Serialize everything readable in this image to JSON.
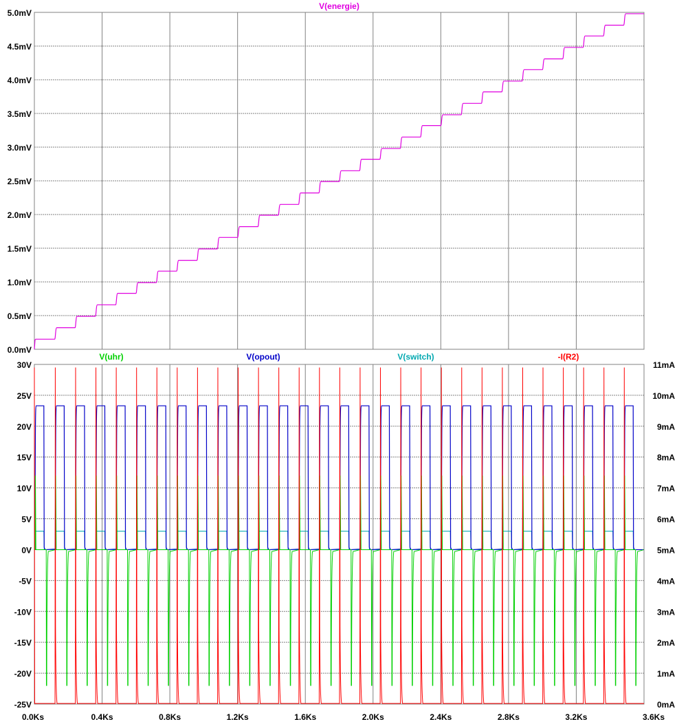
{
  "chart_data": [
    {
      "type": "line",
      "title": "",
      "x_unit": "Ks",
      "xlim": [
        0.0,
        3.6
      ],
      "x_ticks": [
        "0.0Ks",
        "0.4Ks",
        "0.8Ks",
        "1.2Ks",
        "1.6Ks",
        "2.0Ks",
        "2.4Ks",
        "2.8Ks",
        "3.2Ks",
        "3.6Ks"
      ],
      "ylim": [
        0.0,
        5.0
      ],
      "y_ticks": [
        "0.0mV",
        "0.5mV",
        "1.0mV",
        "1.5mV",
        "2.0mV",
        "2.5mV",
        "3.0mV",
        "3.5mV",
        "4.0mV",
        "4.5mV",
        "5.0mV"
      ],
      "grid": true,
      "series": [
        {
          "name": "V(energie)",
          "color": "#e000e0",
          "description_of_shape": "staircase rising by about 0.166mV every 0.12Ks",
          "step_period_ks": 0.12,
          "steps": [
            0.15,
            0.32,
            0.49,
            0.66,
            0.83,
            0.99,
            1.16,
            1.32,
            1.49,
            1.66,
            1.82,
            1.99,
            2.15,
            2.32,
            2.49,
            2.65,
            2.82,
            2.98,
            3.15,
            3.32,
            3.48,
            3.65,
            3.82,
            3.98,
            4.15,
            4.31,
            4.48,
            4.65,
            4.81,
            4.98
          ]
        }
      ]
    },
    {
      "type": "line",
      "title": "",
      "x_unit": "Ks",
      "xlim": [
        0.0,
        3.6
      ],
      "x_ticks": [
        "0.0Ks",
        "0.4Ks",
        "0.8Ks",
        "1.2Ks",
        "1.6Ks",
        "2.0Ks",
        "2.4Ks",
        "2.8Ks",
        "3.2Ks",
        "3.6Ks"
      ],
      "ylim": [
        -25,
        30
      ],
      "y_ticks": [
        "30V",
        "25V",
        "20V",
        "15V",
        "10V",
        "5V",
        "0V",
        "-5V",
        "-10V",
        "-15V",
        "-20V",
        "-25V"
      ],
      "y2lim": [
        0,
        11
      ],
      "y2_ticks": [
        "11mA",
        "10mA",
        "9mA",
        "8mA",
        "7mA",
        "6mA",
        "5mA",
        "4mA",
        "3mA",
        "2mA",
        "1mA",
        "0mA"
      ],
      "grid": true,
      "pulse_period_ks": 0.12,
      "pulse_count": 30,
      "series": [
        {
          "name": "V(uhr)",
          "color": "#00d000",
          "axis": "left",
          "spike_high_v": 12,
          "spike_low_v": -22,
          "baseline_v": 0
        },
        {
          "name": "V(opout)",
          "color": "#0000c8",
          "axis": "left",
          "high_v": 23.3,
          "low_v": 0,
          "high_duration_ks": 0.05
        },
        {
          "name": "V(switch)",
          "color": "#00a8b0",
          "axis": "left",
          "high_v": 3,
          "low_v": 0
        },
        {
          "name": "-I(R2)",
          "color": "#ff0000",
          "axis": "right",
          "spike_ma": 10.9,
          "baseline_ma": 0.02
        }
      ]
    }
  ]
}
